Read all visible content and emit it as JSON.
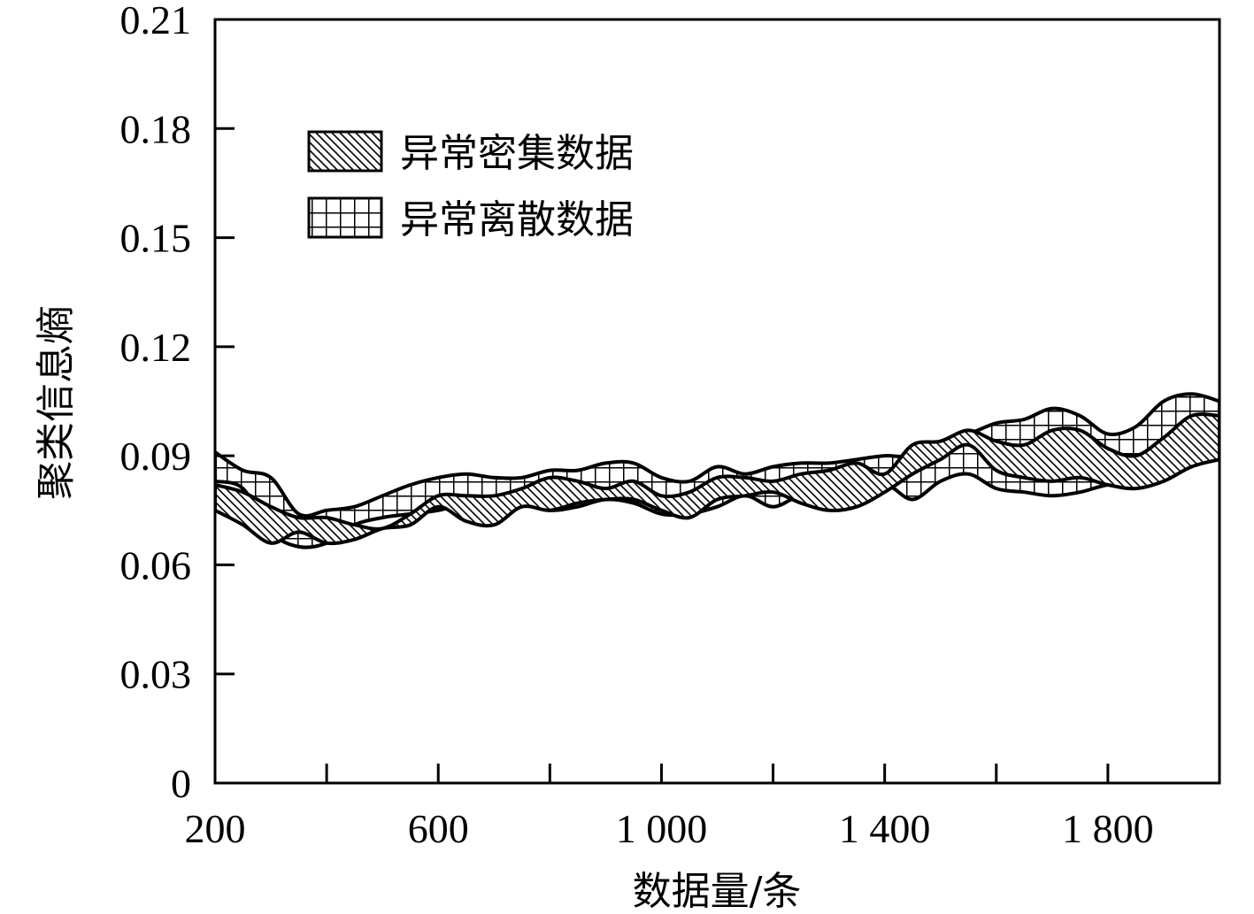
{
  "chart_data": {
    "type": "area",
    "xlabel": "数据量/条",
    "ylabel": "聚类信息熵",
    "xlim": [
      200,
      2000
    ],
    "ylim": [
      0,
      0.21
    ],
    "x_ticks": [
      {
        "value": 200,
        "label": "200"
      },
      {
        "value": 400,
        "label": ""
      },
      {
        "value": 600,
        "label": "600"
      },
      {
        "value": 800,
        "label": ""
      },
      {
        "value": 1000,
        "label": "1 000"
      },
      {
        "value": 1200,
        "label": ""
      },
      {
        "value": 1400,
        "label": "1 400"
      },
      {
        "value": 1600,
        "label": ""
      },
      {
        "value": 1800,
        "label": "1 800"
      },
      {
        "value": 2000,
        "label": ""
      }
    ],
    "y_ticks": [
      {
        "value": 0,
        "label": "0"
      },
      {
        "value": 0.03,
        "label": "0.03"
      },
      {
        "value": 0.06,
        "label": "0.06"
      },
      {
        "value": 0.09,
        "label": "0.09"
      },
      {
        "value": 0.12,
        "label": "0.12"
      },
      {
        "value": 0.15,
        "label": "0.15"
      },
      {
        "value": 0.18,
        "label": "0.18"
      },
      {
        "value": 0.21,
        "label": "0.21"
      }
    ],
    "grid": false,
    "legend_position": "top-left",
    "series": [
      {
        "name": "异常密集数据",
        "pattern": "diagonal-hatch",
        "x": [
          200,
          250,
          300,
          350,
          400,
          450,
          500,
          550,
          600,
          650,
          700,
          750,
          800,
          850,
          900,
          950,
          1000,
          1050,
          1100,
          1150,
          1200,
          1250,
          1300,
          1350,
          1400,
          1450,
          1500,
          1550,
          1600,
          1650,
          1700,
          1750,
          1800,
          1850,
          1900,
          1950,
          2000
        ],
        "upper": [
          0.082,
          0.08,
          0.076,
          0.073,
          0.073,
          0.071,
          0.07,
          0.074,
          0.079,
          0.079,
          0.079,
          0.081,
          0.084,
          0.083,
          0.081,
          0.083,
          0.079,
          0.08,
          0.084,
          0.084,
          0.083,
          0.085,
          0.086,
          0.088,
          0.085,
          0.093,
          0.094,
          0.097,
          0.094,
          0.093,
          0.097,
          0.097,
          0.092,
          0.09,
          0.095,
          0.101,
          0.101
        ],
        "lower": [
          0.075,
          0.071,
          0.066,
          0.069,
          0.066,
          0.067,
          0.07,
          0.071,
          0.076,
          0.072,
          0.071,
          0.076,
          0.075,
          0.077,
          0.078,
          0.078,
          0.075,
          0.073,
          0.078,
          0.079,
          0.08,
          0.077,
          0.075,
          0.076,
          0.08,
          0.085,
          0.089,
          0.093,
          0.086,
          0.084,
          0.083,
          0.084,
          0.082,
          0.081,
          0.083,
          0.087,
          0.089
        ]
      },
      {
        "name": "异常离散数据",
        "pattern": "grid-hatch",
        "x": [
          200,
          250,
          300,
          350,
          400,
          450,
          500,
          550,
          600,
          650,
          700,
          750,
          800,
          850,
          900,
          950,
          1000,
          1050,
          1100,
          1150,
          1200,
          1250,
          1300,
          1350,
          1400,
          1450,
          1500,
          1550,
          1600,
          1650,
          1700,
          1750,
          1800,
          1850,
          1900,
          1950,
          2000
        ],
        "upper": [
          0.091,
          0.086,
          0.084,
          0.074,
          0.075,
          0.076,
          0.079,
          0.082,
          0.084,
          0.085,
          0.084,
          0.084,
          0.086,
          0.086,
          0.088,
          0.088,
          0.084,
          0.083,
          0.087,
          0.085,
          0.087,
          0.088,
          0.088,
          0.089,
          0.09,
          0.09,
          0.094,
          0.096,
          0.099,
          0.1,
          0.103,
          0.101,
          0.096,
          0.098,
          0.105,
          0.107,
          0.105
        ],
        "lower": [
          0.083,
          0.081,
          0.069,
          0.065,
          0.066,
          0.071,
          0.073,
          0.074,
          0.075,
          0.077,
          0.078,
          0.077,
          0.075,
          0.076,
          0.078,
          0.077,
          0.074,
          0.074,
          0.076,
          0.079,
          0.076,
          0.079,
          0.078,
          0.077,
          0.082,
          0.078,
          0.083,
          0.085,
          0.081,
          0.08,
          0.079,
          0.08,
          0.082,
          0.082,
          0.085,
          0.092,
          0.092
        ]
      }
    ]
  }
}
